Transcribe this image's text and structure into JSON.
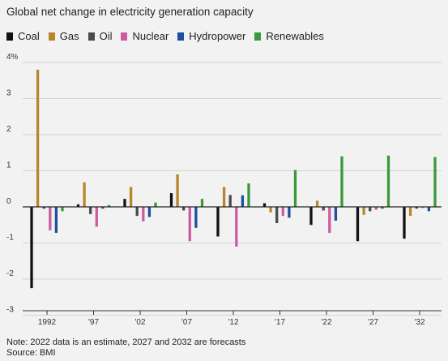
{
  "chart_data": {
    "type": "bar",
    "title": "Global net change in electricity generation capacity",
    "categories": [
      "1992",
      "'97",
      "'02",
      "'07",
      "'12",
      "'17",
      "'22",
      "'27",
      "'32"
    ],
    "y_ticks": [
      "4%",
      "3",
      "2",
      "1",
      "0",
      "-1",
      "-2",
      "-3"
    ],
    "ylim": [
      -3,
      4
    ],
    "grid": true,
    "legend_position": "top-left",
    "series": [
      {
        "name": "Coal",
        "color": "#111111",
        "values": [
          -2.25,
          0.07,
          0.22,
          0.38,
          -0.82,
          0.1,
          -0.5,
          -0.95,
          -0.88
        ]
      },
      {
        "name": "Gas",
        "color": "#b8862a",
        "values": [
          3.8,
          0.68,
          0.55,
          0.9,
          0.55,
          -0.15,
          0.17,
          -0.22,
          -0.25
        ]
      },
      {
        "name": "Oil",
        "color": "#4a4a4a",
        "values": [
          -0.05,
          -0.2,
          -0.25,
          -0.1,
          0.33,
          -0.45,
          -0.1,
          -0.12,
          -0.05
        ]
      },
      {
        "name": "Nuclear",
        "color": "#cc5c9f",
        "values": [
          -0.65,
          -0.55,
          -0.4,
          -0.95,
          -1.1,
          -0.25,
          -0.72,
          -0.08,
          -0.03
        ]
      },
      {
        "name": "Hydropower",
        "color": "#1f4e9c",
        "values": [
          -0.72,
          -0.05,
          -0.28,
          -0.58,
          0.32,
          -0.3,
          -0.38,
          -0.05,
          -0.12
        ]
      },
      {
        "name": "Renewables",
        "color": "#3a9a3a",
        "values": [
          -0.12,
          0.05,
          0.12,
          0.22,
          0.65,
          1.02,
          1.4,
          1.42,
          1.38
        ]
      }
    ]
  },
  "notes": {
    "line1": "Note: 2022 data is an estimate, 2027 and 2032 are forecasts",
    "line2": "Source: BMI"
  }
}
